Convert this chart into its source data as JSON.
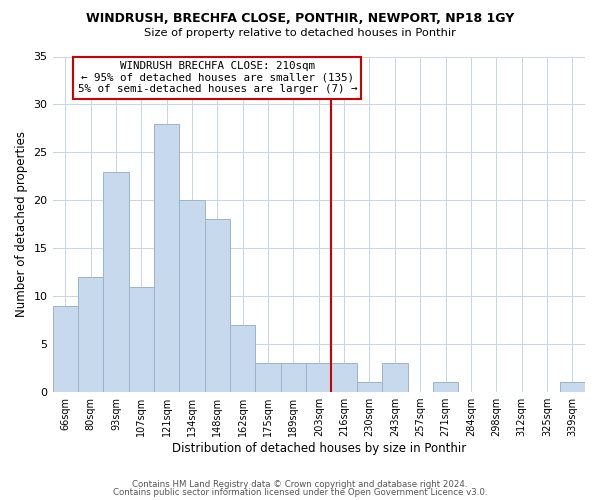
{
  "title": "WINDRUSH, BRECHFA CLOSE, PONTHIR, NEWPORT, NP18 1GY",
  "subtitle": "Size of property relative to detached houses in Ponthir",
  "xlabel": "Distribution of detached houses by size in Ponthir",
  "ylabel": "Number of detached properties",
  "footer_line1": "Contains HM Land Registry data © Crown copyright and database right 2024.",
  "footer_line2": "Contains public sector information licensed under the Open Government Licence v3.0.",
  "categories": [
    "66sqm",
    "80sqm",
    "93sqm",
    "107sqm",
    "121sqm",
    "134sqm",
    "148sqm",
    "162sqm",
    "175sqm",
    "189sqm",
    "203sqm",
    "216sqm",
    "230sqm",
    "243sqm",
    "257sqm",
    "271sqm",
    "284sqm",
    "298sqm",
    "312sqm",
    "325sqm",
    "339sqm"
  ],
  "values": [
    9,
    12,
    23,
    11,
    28,
    20,
    18,
    7,
    3,
    3,
    3,
    3,
    1,
    3,
    0,
    1,
    0,
    0,
    0,
    0,
    1
  ],
  "bar_color": "#c6d9ed",
  "bar_edge_color": "#9ab4cc",
  "vline_index": 11,
  "vline_color": "#cc0000",
  "annotation_title": "WINDRUSH BRECHFA CLOSE: 210sqm",
  "annotation_line1": "← 95% of detached houses are smaller (135)",
  "annotation_line2": "5% of semi-detached houses are larger (7) →",
  "ylim": [
    0,
    35
  ],
  "yticks": [
    0,
    5,
    10,
    15,
    20,
    25,
    30,
    35
  ],
  "background_color": "#ffffff",
  "grid_color": "#c8d4e0"
}
